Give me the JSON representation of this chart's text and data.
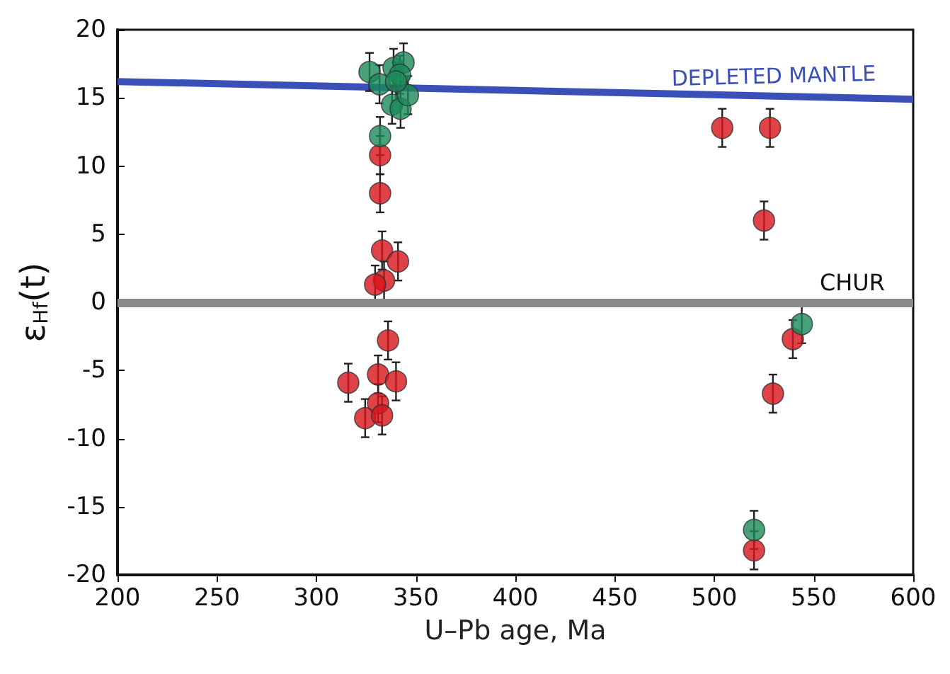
{
  "chart_data": {
    "type": "scatter",
    "xlabel": "U–Pb age, Ma",
    "ylabel": "ε$_{Hf}$(t)",
    "xlim": [
      200,
      600
    ],
    "xticks": [
      200,
      250,
      300,
      350,
      400,
      450,
      500,
      550,
      600
    ],
    "ylim": [
      -20,
      20
    ],
    "yticks": [
      -20,
      -15,
      -10,
      -5,
      0,
      5,
      10,
      15,
      20
    ],
    "grid": false,
    "marker": "circle",
    "series": [
      {
        "type": "line",
        "color": "#3a4fb8",
        "x": [
          200,
          600
        ],
        "values": [
          16.2,
          14.9
        ],
        "marker": "none"
      },
      {
        "color": "#d7141a",
        "x": [
          332,
          332,
          333,
          334,
          341,
          329.5,
          336,
          316,
          331,
          340,
          331,
          324.5,
          333,
          504,
          528,
          525,
          539.5,
          529.5,
          520
        ],
        "values": [
          8.0,
          10.8,
          3.8,
          1.6,
          3.0,
          1.3,
          -2.8,
          -5.9,
          -5.3,
          -5.8,
          -7.4,
          -8.5,
          -8.3,
          12.8,
          12.8,
          6.0,
          -2.7,
          -6.7,
          -18.2
        ],
        "errors": [
          1.4,
          1.4,
          1.4,
          1.4,
          1.4,
          1.4,
          1.4,
          1.4,
          1.4,
          1.4,
          1.4,
          1.4,
          1.4,
          1.4,
          1.4,
          1.4,
          1.4,
          1.4,
          1.4
        ]
      },
      {
        "color": "#1a8a5a",
        "x": [
          544,
          520,
          332,
          326.7,
          331.7,
          338.8,
          343.8,
          342,
          338,
          342.3,
          346,
          340
        ],
        "values": [
          -1.6,
          -16.7,
          12.2,
          16.9,
          16.0,
          17.2,
          17.6,
          16.7,
          14.5,
          14.2,
          15.2,
          16.2
        ],
        "errors": [
          1.4,
          1.4,
          1.4,
          1.4,
          1.4,
          1.4,
          1.4,
          1.4,
          1.4,
          1.4,
          1.4,
          1.4
        ]
      }
    ],
    "ref_lines": [
      {
        "axis": "y",
        "value": 0,
        "label": "CHUR",
        "color": "#8a8a8a"
      }
    ],
    "annotations": [
      {
        "text": "DEPLETED MANTLE",
        "x": 530,
        "y": 15.2
      }
    ]
  }
}
